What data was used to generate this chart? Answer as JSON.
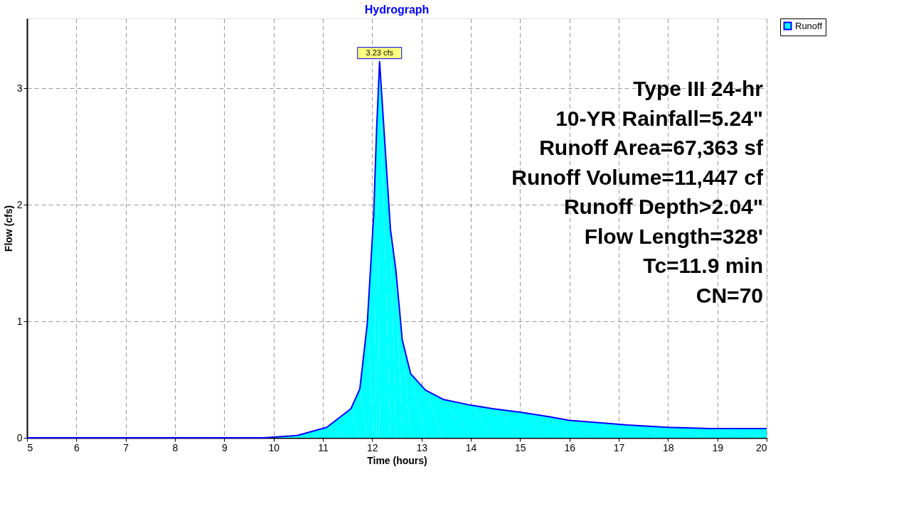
{
  "chart_data": {
    "type": "area",
    "title": "Hydrograph",
    "xlabel": "Time  (hours)",
    "ylabel": "Flow  (cfs)",
    "x": [
      5,
      9.8,
      10.48,
      11.08,
      11.57,
      11.75,
      11.9,
      12.03,
      12.09,
      12.15,
      12.37,
      12.48,
      12.61,
      12.78,
      13.08,
      13.44,
      14.0,
      14.44,
      15.0,
      15.6,
      16.0,
      16.6,
      17.18,
      17.99,
      18.85,
      20
    ],
    "series": [
      {
        "name": "Runoff",
        "color": "#00ffff",
        "values": [
          0,
          0,
          0.02,
          0.09,
          0.25,
          0.42,
          0.98,
          1.91,
          2.65,
          3.23,
          1.79,
          1.44,
          0.84,
          0.55,
          0.41,
          0.33,
          0.28,
          0.25,
          0.22,
          0.18,
          0.15,
          0.13,
          0.11,
          0.09,
          0.08,
          0.08
        ]
      }
    ],
    "xlim": [
      5,
      20
    ],
    "xticks": [
      5,
      6,
      7,
      8,
      9,
      10,
      11,
      12,
      13,
      14,
      15,
      16,
      17,
      18,
      19,
      20
    ],
    "ylim": [
      0,
      3.6
    ],
    "yticks": [
      0,
      1,
      2,
      3
    ],
    "grid": true,
    "legend": "top right",
    "annotations": [
      {
        "text": "3.23 cfs",
        "x": 12.15,
        "y": 3.23
      },
      "Type III 24-hr",
      "10-YR Rainfall=5.24\"",
      "Runoff Area=67,363 sf",
      "Runoff Volume=11,447 cf",
      "Runoff Depth>2.04\"",
      "Flow Length=328'",
      "Tc=11.9 min",
      "CN=70"
    ]
  }
}
